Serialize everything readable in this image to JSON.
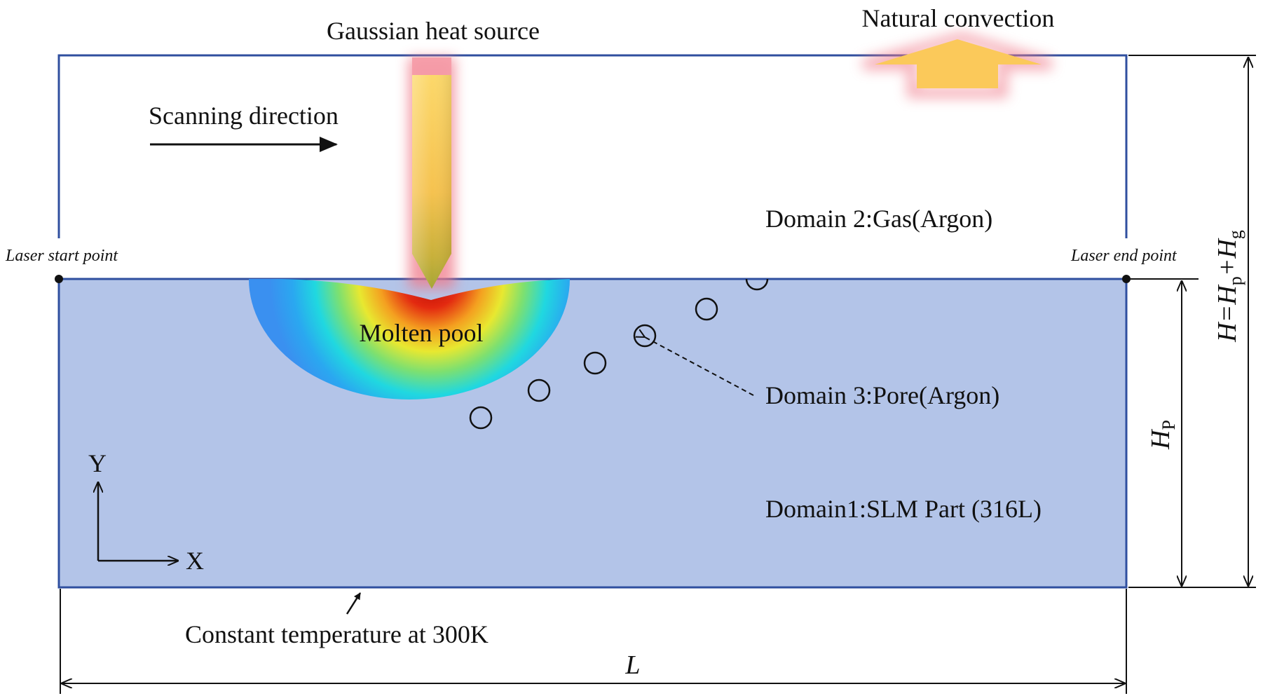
{
  "labels": {
    "heat_source": "Gaussian heat source",
    "natural_convection": "Natural convection",
    "scanning_direction": "Scanning direction",
    "domain2": "Domain 2:Gas(Argon)",
    "laser_start": "Laser start point",
    "laser_end": "Laser end point",
    "molten_pool": "Molten pool",
    "domain3": "Domain 3:Pore(Argon)",
    "domain1": "Domain1:SLM Part (316L)",
    "axis_y": "Y",
    "axis_x": "X",
    "constant_temp": "Constant temperature at 300K",
    "dim_L": "L",
    "dim_Hp_main": "H",
    "dim_Hp_sub": "P",
    "dim_H_eq": "H=H",
    "dim_H_p": "p",
    "dim_H_plus": "+H",
    "dim_H_g": "g"
  },
  "colors": {
    "domain_border": "#2f4f9f",
    "part_fill": "#b3c4e8",
    "gas_fill": "#ffffff",
    "arrow_yellow": "#fbc95a",
    "glow_pink": "#f07a8a"
  },
  "pores": {
    "count": 6
  }
}
